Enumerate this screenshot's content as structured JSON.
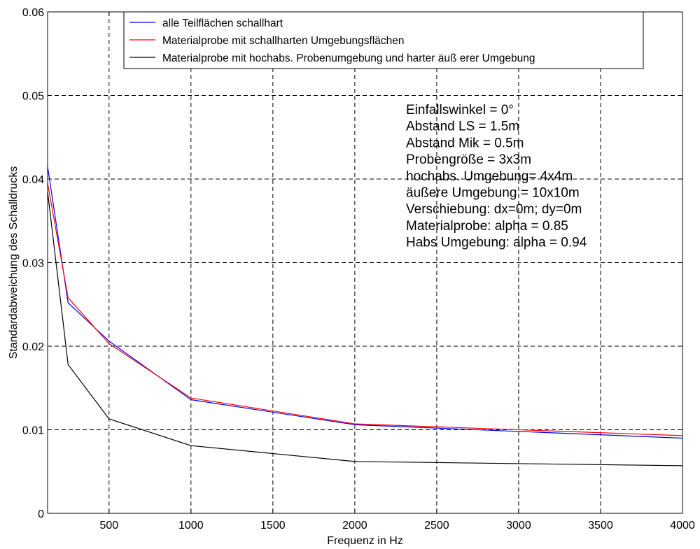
{
  "chart_data": {
    "type": "line",
    "xlabel": "Frequenz in Hz",
    "ylabel": "Standardabweichung des Schalldrucks",
    "xlim": [
      125,
      4000
    ],
    "ylim": [
      0,
      0.06
    ],
    "xticks": [
      500,
      1000,
      1500,
      2000,
      2500,
      3000,
      3500,
      4000
    ],
    "xtick_labels": [
      "500",
      "1000",
      "1500",
      "2000",
      "2500",
      "3000",
      "3500",
      "4000"
    ],
    "yticks": [
      0,
      0.01,
      0.02,
      0.03,
      0.04,
      0.05,
      0.06
    ],
    "ytick_labels": [
      "0",
      "0.01",
      "0.02",
      "0.03",
      "0.04",
      "0.05",
      "0.06"
    ],
    "grid": true,
    "legend_position": "top",
    "x": [
      125,
      250,
      500,
      1000,
      2000,
      4000
    ],
    "series": [
      {
        "name": "alle Teilflächen schallhart",
        "color": "#0000ff",
        "values": [
          0.0415,
          0.0252,
          0.0206,
          0.0136,
          0.0106,
          0.009
        ]
      },
      {
        "name": "Materialprobe mit schallharten Umgebungsflächen",
        "color": "#ff0000",
        "values": [
          0.0395,
          0.0258,
          0.0203,
          0.0138,
          0.0107,
          0.0093
        ]
      },
      {
        "name": "Materialprobe mit hochabs. Probenumgebung und harter äuß erer Umgebung",
        "color": "#000000",
        "values": [
          0.0385,
          0.0178,
          0.0113,
          0.0081,
          0.0062,
          0.0057
        ]
      }
    ],
    "annotations": [
      "Einfallswinkel = 0°",
      "Abstand LS = 1.5m",
      "Abstand Mik = 0.5m",
      "Probengröße = 3x3m",
      "hochabs. Umgebung= 4x4m",
      "äußere Umgebung = 10x10m",
      "Verschiebung: dx=0m; dy=0m",
      "Materialprobe: alpha = 0.85",
      "Habs Umgebung: alpha = 0.94"
    ]
  }
}
